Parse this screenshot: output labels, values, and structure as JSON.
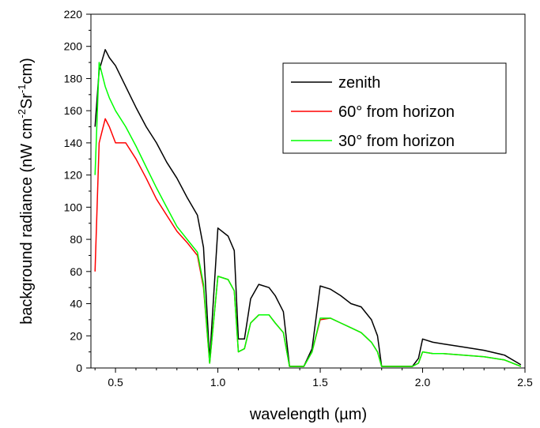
{
  "chart_data": {
    "type": "line",
    "xlabel_prefix": "wavelength (",
    "xlabel_unit": "µm",
    "xlabel_suffix": ")",
    "ylabel_main": "background radiance (nW cm",
    "ylabel_sup1": "-2",
    "ylabel_mid": "Sr",
    "ylabel_sup2": "-1",
    "ylabel_end": "cm)",
    "xlim": [
      0.38,
      2.5
    ],
    "ylim": [
      0,
      220
    ],
    "x_ticks": [
      0.5,
      1.0,
      1.5,
      2.0,
      2.5
    ],
    "x_tick_labels": [
      "0.5",
      "1.0",
      "1.5",
      "2.0",
      "2.5"
    ],
    "y_ticks": [
      0,
      20,
      40,
      60,
      80,
      100,
      120,
      140,
      160,
      180,
      200,
      220
    ],
    "y_tick_labels": [
      "0",
      "20",
      "40",
      "60",
      "80",
      "100",
      "120",
      "140",
      "160",
      "180",
      "200",
      "220"
    ],
    "grid": false,
    "legend_position": "top-right",
    "series": [
      {
        "name": "zenith",
        "color": "#000000",
        "x": [
          0.4,
          0.42,
          0.45,
          0.47,
          0.5,
          0.55,
          0.6,
          0.65,
          0.7,
          0.75,
          0.8,
          0.85,
          0.9,
          0.93,
          0.96,
          1.0,
          1.05,
          1.08,
          1.1,
          1.13,
          1.16,
          1.2,
          1.25,
          1.28,
          1.32,
          1.35,
          1.38,
          1.42,
          1.46,
          1.5,
          1.55,
          1.6,
          1.65,
          1.7,
          1.75,
          1.78,
          1.8,
          1.83,
          1.9,
          1.95,
          1.98,
          2.0,
          2.05,
          2.1,
          2.2,
          2.3,
          2.4,
          2.48
        ],
        "y": [
          150,
          185,
          198,
          193,
          188,
          175,
          162,
          150,
          140,
          128,
          118,
          106,
          95,
          75,
          5,
          87,
          82,
          73,
          18,
          18,
          43,
          52,
          50,
          45,
          35,
          1,
          1,
          1,
          12,
          51,
          49,
          45,
          40,
          38,
          30,
          20,
          1,
          1,
          1,
          1,
          6,
          18,
          16,
          15,
          13,
          11,
          8,
          2
        ]
      },
      {
        "name": "60° from horizon",
        "color": "#ff0000",
        "x": [
          0.4,
          0.42,
          0.45,
          0.47,
          0.5,
          0.55,
          0.6,
          0.65,
          0.7,
          0.75,
          0.8,
          0.85,
          0.9,
          0.93,
          0.96,
          1.0,
          1.05,
          1.08,
          1.1,
          1.13,
          1.16,
          1.2,
          1.25,
          1.28,
          1.32,
          1.35,
          1.38,
          1.42,
          1.46,
          1.5,
          1.55,
          1.6,
          1.65,
          1.7,
          1.75,
          1.78,
          1.8,
          1.83,
          1.9,
          1.95,
          1.98,
          2.0,
          2.05,
          2.1,
          2.2,
          2.3,
          2.4,
          2.48
        ],
        "y": [
          60,
          140,
          155,
          150,
          140,
          140,
          130,
          118,
          105,
          95,
          85,
          78,
          70,
          50,
          3,
          57,
          55,
          48,
          10,
          12,
          28,
          33,
          33,
          28,
          22,
          1,
          1,
          1,
          10,
          30,
          31,
          28,
          25,
          22,
          16,
          10,
          1,
          1,
          1,
          1,
          3,
          10,
          9,
          9,
          8,
          7,
          5,
          1
        ]
      },
      {
        "name": "30° from horizon",
        "color": "#00ff00",
        "x": [
          0.4,
          0.42,
          0.45,
          0.47,
          0.5,
          0.55,
          0.6,
          0.65,
          0.7,
          0.75,
          0.8,
          0.85,
          0.9,
          0.93,
          0.96,
          1.0,
          1.05,
          1.08,
          1.1,
          1.13,
          1.16,
          1.2,
          1.25,
          1.28,
          1.32,
          1.35,
          1.38,
          1.42,
          1.46,
          1.5,
          1.55,
          1.6,
          1.65,
          1.7,
          1.75,
          1.78,
          1.8,
          1.83,
          1.9,
          1.95,
          1.98,
          2.0,
          2.05,
          2.1,
          2.2,
          2.3,
          2.4,
          2.48
        ],
        "y": [
          120,
          190,
          175,
          168,
          160,
          150,
          138,
          125,
          112,
          100,
          88,
          80,
          72,
          52,
          3,
          57,
          55,
          48,
          10,
          12,
          28,
          33,
          33,
          28,
          22,
          1,
          1,
          1,
          10,
          31,
          31,
          28,
          25,
          22,
          16,
          10,
          1,
          1,
          1,
          1,
          3,
          10,
          9,
          9,
          8,
          7,
          5,
          1
        ]
      }
    ]
  }
}
